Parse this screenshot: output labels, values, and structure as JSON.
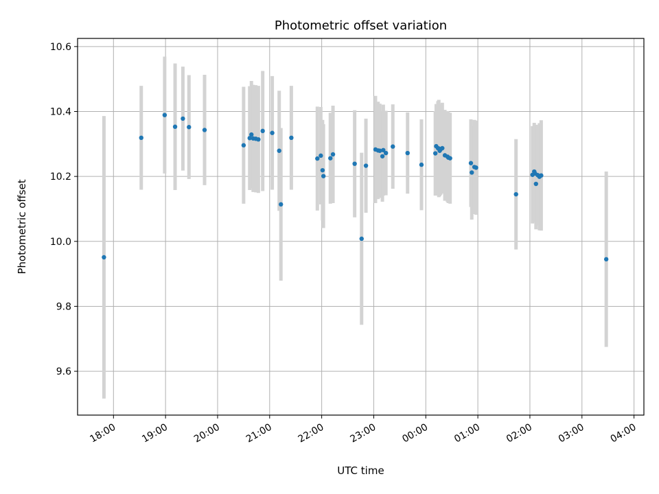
{
  "chart_data": {
    "type": "scatter",
    "title": "Photometric offset variation",
    "xlabel": "UTC time",
    "ylabel": "Photometric offset",
    "x_ticks": [
      "18:00",
      "19:00",
      "20:00",
      "21:00",
      "22:00",
      "23:00",
      "00:00",
      "01:00",
      "02:00",
      "03:00",
      "04:00"
    ],
    "y_ticks": [
      "9.6",
      "9.8",
      "10.0",
      "10.2",
      "10.4",
      "10.6"
    ],
    "x_tick_hours": [
      18,
      19,
      20,
      21,
      22,
      23,
      24,
      25,
      26,
      27,
      28
    ],
    "y_tick_values": [
      9.6,
      9.8,
      10.0,
      10.2,
      10.4,
      10.6
    ],
    "xlim_hours": [
      17.31,
      28.19
    ],
    "ylim": [
      9.465,
      10.625
    ],
    "grid": true,
    "colors": {
      "points": "#1f77b4",
      "errorbars": "#d3d3d3",
      "grid": "#b0b0b0"
    },
    "series": [
      {
        "x_utc": [
          "17:49",
          "18:32",
          "18:59",
          "19:11",
          "19:20",
          "19:27",
          "19:45",
          "20:30",
          "20:37",
          "20:39",
          "20:41",
          "20:44",
          "20:47",
          "20:52",
          "21:03",
          "21:11",
          "21:13",
          "21:25",
          "21:55",
          "21:59",
          "22:01",
          "22:02",
          "22:10",
          "22:13",
          "22:38",
          "22:46",
          "22:51",
          "23:02",
          "23:05",
          "23:07",
          "23:10",
          "23:11",
          "23:14",
          "23:22",
          "23:39",
          "23:55",
          "00:11",
          "00:12",
          "00:14",
          "00:15",
          "00:16",
          "00:17",
          "00:19",
          "00:22",
          "00:25",
          "00:26",
          "00:28",
          "00:52",
          "00:53",
          "00:56",
          "00:58",
          "01:44",
          "02:03",
          "02:05",
          "02:06",
          "02:07",
          "02:09",
          "02:11",
          "02:13",
          "03:28"
        ],
        "y": [
          9.951,
          10.319,
          10.389,
          10.353,
          10.378,
          10.352,
          10.343,
          10.296,
          10.318,
          10.329,
          10.317,
          10.316,
          10.314,
          10.34,
          10.334,
          10.279,
          10.114,
          10.319,
          10.255,
          10.264,
          10.219,
          10.201,
          10.256,
          10.268,
          10.239,
          10.008,
          10.233,
          10.283,
          10.28,
          10.279,
          10.262,
          10.281,
          10.272,
          10.292,
          10.272,
          10.236,
          10.271,
          10.293,
          10.287,
          10.286,
          10.279,
          10.283,
          10.287,
          10.265,
          10.261,
          10.258,
          10.256,
          10.241,
          10.212,
          10.229,
          10.227,
          10.145,
          10.205,
          10.215,
          10.209,
          10.177,
          10.204,
          10.199,
          10.203,
          9.945
        ],
        "err": [
          0.435,
          0.16,
          0.18,
          0.195,
          0.16,
          0.16,
          0.17,
          0.18,
          0.16,
          0.165,
          0.165,
          0.165,
          0.165,
          0.185,
          0.175,
          0.185,
          0.235,
          0.16,
          0.16,
          0.15,
          0.155,
          0.16,
          0.14,
          0.15,
          0.165,
          0.265,
          0.145,
          0.165,
          0.15,
          0.145,
          0.14,
          0.14,
          0.13,
          0.13,
          0.125,
          0.14,
          0.13,
          0.13,
          0.145,
          0.15,
          0.14,
          0.14,
          0.14,
          0.14,
          0.14,
          0.14,
          0.14,
          0.135,
          0.145,
          0.145,
          0.145,
          0.17,
          0.15,
          0.15,
          0.15,
          0.14,
          0.155,
          0.165,
          0.17,
          0.27
        ]
      }
    ]
  }
}
